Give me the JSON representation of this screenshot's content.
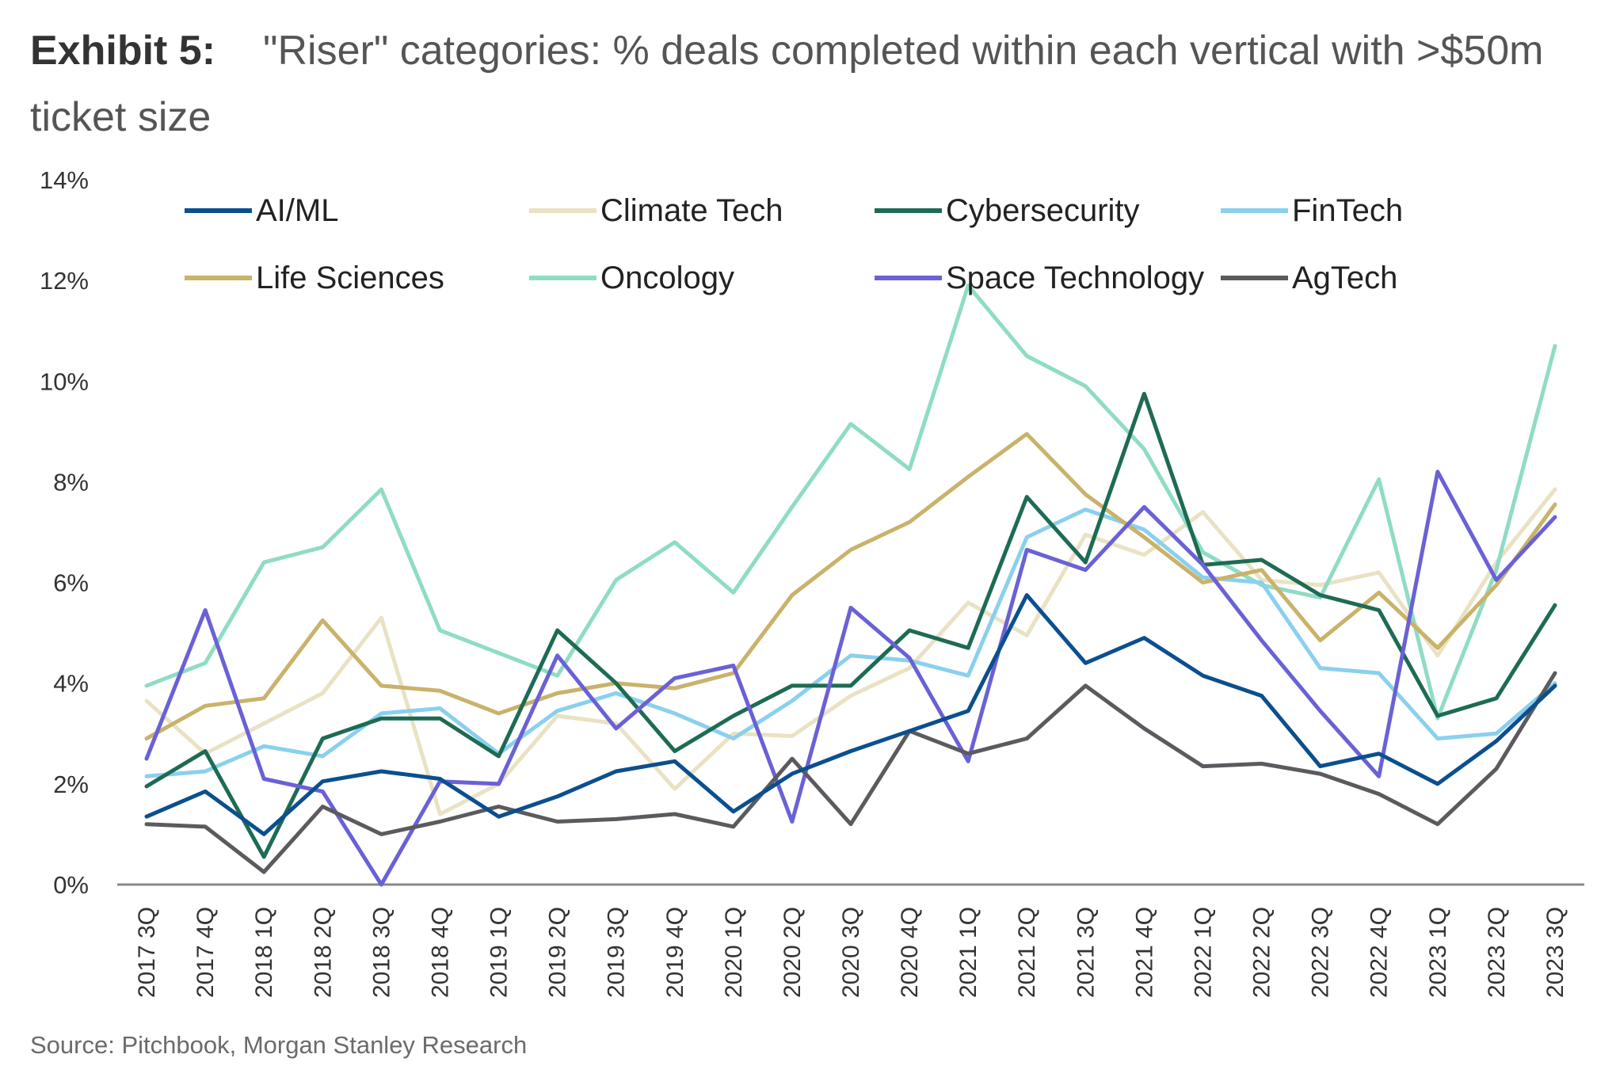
{
  "header": {
    "exhibit_label": "Exhibit 5:",
    "title": "\"Riser\" categories: % deals completed within each vertical with >$50m ticket size"
  },
  "footer": {
    "source": "Source: Pitchbook, Morgan Stanley Research"
  },
  "chart_data": {
    "type": "line",
    "title": "\"Riser\" categories: % deals completed within each vertical with >$50m ticket size",
    "xlabel": "",
    "ylabel": "",
    "ylim": [
      0,
      14
    ],
    "yticks": [
      "0%",
      "2%",
      "4%",
      "6%",
      "8%",
      "10%",
      "12%",
      "14%"
    ],
    "grid": false,
    "legend_position": "top",
    "categories": [
      "2017 3Q",
      "2017 4Q",
      "2018 1Q",
      "2018 2Q",
      "2018 3Q",
      "2018 4Q",
      "2019 1Q",
      "2019 2Q",
      "2019 3Q",
      "2019 4Q",
      "2020 1Q",
      "2020 2Q",
      "2020 3Q",
      "2020 4Q",
      "2021 1Q",
      "2021 2Q",
      "2021 3Q",
      "2021 4Q",
      "2022 1Q",
      "2022 2Q",
      "2022 3Q",
      "2022 4Q",
      "2023 1Q",
      "2023 2Q",
      "2023 3Q"
    ],
    "series": [
      {
        "name": "Climate Tech",
        "color": "#e9e2c3",
        "values": [
          3.65,
          2.6,
          3.2,
          3.8,
          5.3,
          1.4,
          2.0,
          3.35,
          3.2,
          1.9,
          3.0,
          2.95,
          3.75,
          4.3,
          5.6,
          4.95,
          6.95,
          6.55,
          7.4,
          6.05,
          5.95,
          6.2,
          4.55,
          6.4,
          7.85
        ]
      },
      {
        "name": "Oncology",
        "color": "#8fdcc4",
        "values": [
          3.95,
          4.4,
          6.4,
          6.7,
          7.85,
          5.05,
          4.6,
          4.15,
          6.05,
          6.8,
          5.8,
          7.5,
          9.15,
          8.25,
          11.9,
          10.5,
          9.9,
          8.65,
          6.6,
          5.95,
          5.7,
          8.05,
          3.3,
          6.25,
          10.7
        ]
      },
      {
        "name": "FinTech",
        "color": "#8ad0ee",
        "values": [
          2.15,
          2.25,
          2.75,
          2.55,
          3.4,
          3.5,
          2.6,
          3.45,
          3.8,
          3.4,
          2.9,
          3.65,
          4.55,
          4.45,
          4.15,
          6.9,
          7.45,
          7.05,
          6.1,
          6.0,
          4.3,
          4.2,
          2.9,
          3.0,
          4.0
        ]
      },
      {
        "name": "Life Sciences",
        "color": "#c9b26a",
        "values": [
          2.9,
          3.55,
          3.7,
          5.25,
          3.95,
          3.85,
          3.4,
          3.8,
          4.0,
          3.9,
          4.2,
          5.75,
          6.65,
          7.2,
          8.1,
          8.95,
          7.75,
          6.9,
          6.0,
          6.25,
          4.85,
          5.8,
          4.7,
          5.95,
          7.55
        ]
      },
      {
        "name": "Cybersecurity",
        "color": "#1e6b55",
        "values": [
          1.95,
          2.65,
          0.55,
          2.9,
          3.3,
          3.3,
          2.55,
          5.05,
          4.0,
          2.65,
          3.35,
          3.95,
          3.95,
          5.05,
          4.7,
          7.7,
          6.4,
          9.75,
          6.35,
          6.45,
          5.75,
          5.45,
          3.35,
          3.7,
          5.55
        ]
      },
      {
        "name": "Space Technology",
        "color": "#6a61d6",
        "values": [
          2.5,
          5.45,
          2.1,
          1.85,
          0.0,
          2.05,
          2.0,
          4.55,
          3.1,
          4.1,
          4.35,
          1.25,
          5.5,
          4.5,
          2.45,
          6.65,
          6.25,
          7.5,
          6.35,
          4.85,
          3.45,
          2.15,
          8.2,
          6.05,
          7.3
        ]
      },
      {
        "name": "AgTech",
        "color": "#5b5b5f",
        "values": [
          1.2,
          1.15,
          0.25,
          1.55,
          1.0,
          1.25,
          1.55,
          1.25,
          1.3,
          1.4,
          1.15,
          2.5,
          1.2,
          3.05,
          2.6,
          2.9,
          3.95,
          3.1,
          2.35,
          2.4,
          2.2,
          1.8,
          1.2,
          2.3,
          4.2
        ]
      },
      {
        "name": "AI/ML",
        "color": "#0b4f8f",
        "values": [
          1.35,
          1.85,
          1.0,
          2.05,
          2.25,
          2.1,
          1.35,
          1.75,
          2.25,
          2.45,
          1.45,
          2.2,
          2.65,
          3.05,
          3.45,
          5.75,
          4.4,
          4.9,
          4.15,
          3.75,
          2.35,
          2.6,
          2.0,
          2.85,
          3.95
        ]
      }
    ],
    "legend": [
      "AI/ML",
      "Climate Tech",
      "Cybersecurity",
      "FinTech",
      "Life Sciences",
      "Oncology",
      "Space Technology",
      "AgTech"
    ]
  }
}
